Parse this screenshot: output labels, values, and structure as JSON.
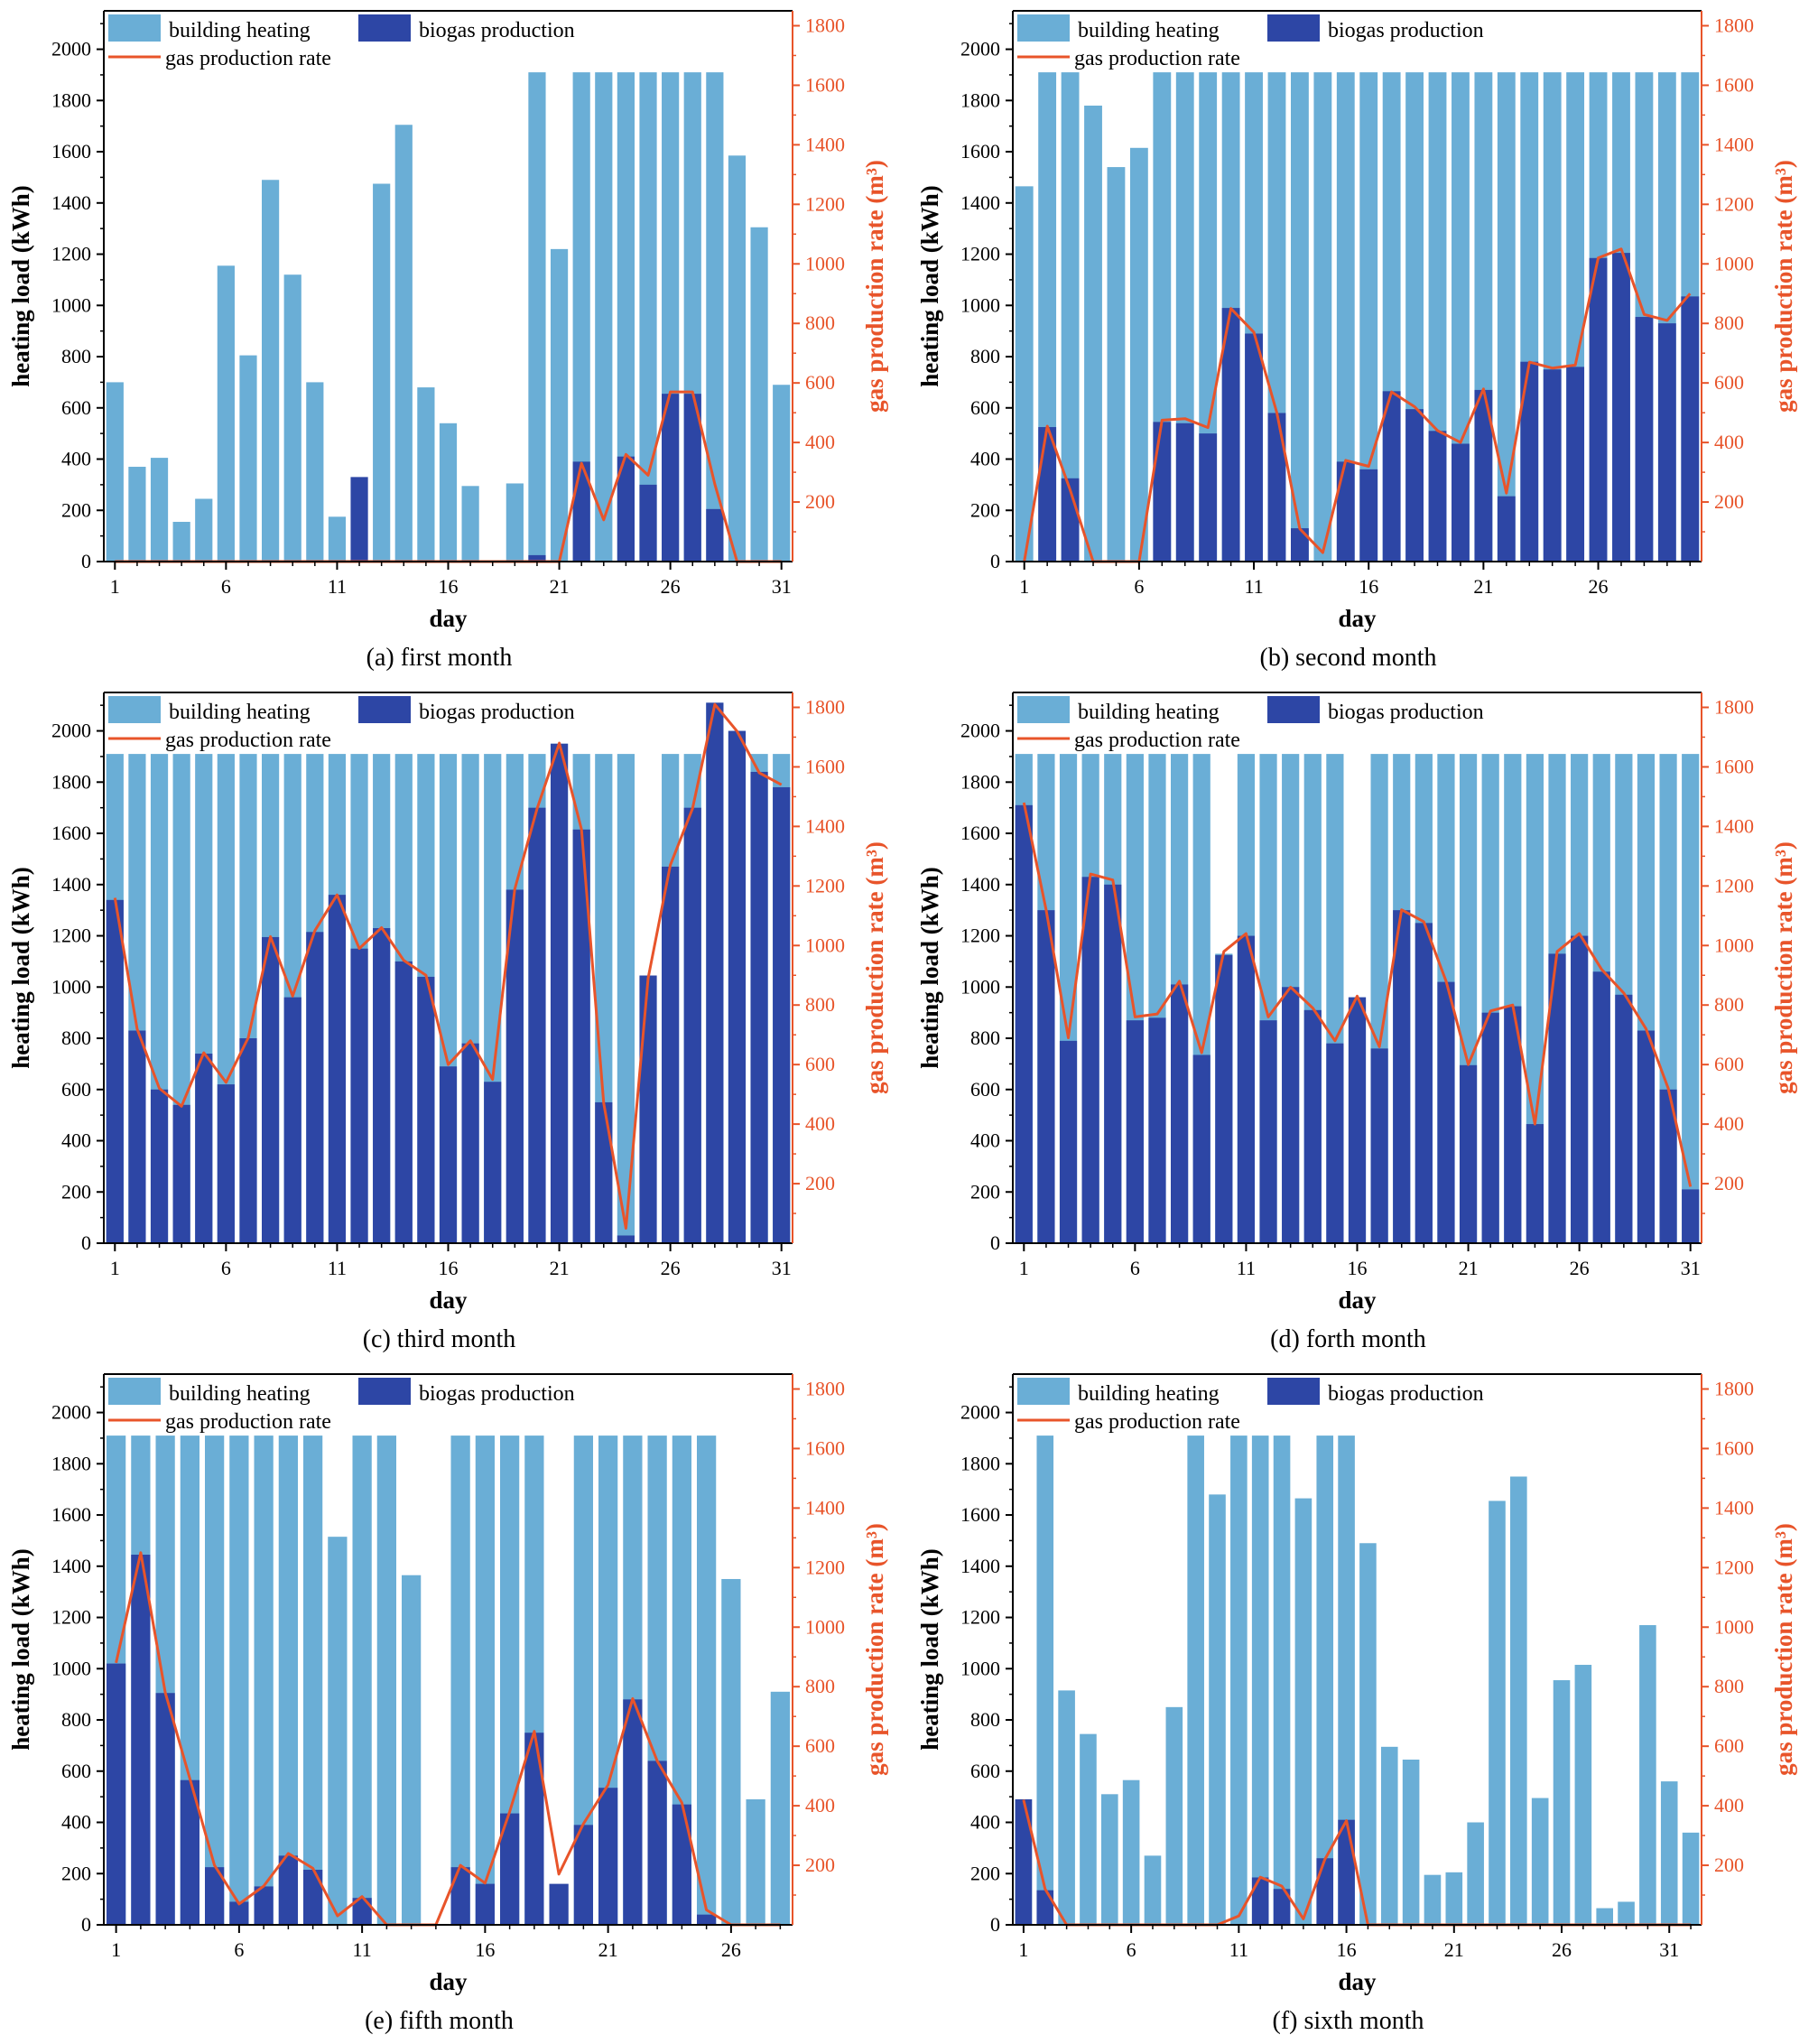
{
  "legend": {
    "heating": "building heating",
    "biogas": "biogas production",
    "rate": "gas production rate"
  },
  "colors": {
    "heating": "#6aaed6",
    "biogas": "#2d46a5",
    "rate": "#e8542a"
  },
  "chart_data": [
    {
      "type": "bar",
      "caption": "(a)  first month",
      "xlabel": "day",
      "ylabel": "heating load (kWh)",
      "y2label": "gas production rate (m³)",
      "ylim": [
        0,
        2150
      ],
      "y2lim": [
        0,
        1850
      ],
      "yticks": [
        0,
        200,
        400,
        600,
        800,
        1000,
        1200,
        1400,
        1600,
        1800,
        2000
      ],
      "y2ticks": [
        200,
        400,
        600,
        800,
        1000,
        1200,
        1400,
        1600,
        1800
      ],
      "xticks": [
        1,
        6,
        11,
        16,
        21,
        26,
        31
      ],
      "days": 31,
      "series": [
        {
          "name": "building heating",
          "values": [
            700,
            370,
            405,
            155,
            245,
            1155,
            805,
            1490,
            1120,
            700,
            175,
            0,
            1475,
            1705,
            680,
            540,
            295,
            0,
            305,
            1910,
            1220,
            1910,
            1910,
            1910,
            1910,
            1910,
            1910,
            1910,
            1585,
            1305,
            690
          ]
        },
        {
          "name": "biogas production",
          "values": [
            0,
            0,
            0,
            0,
            0,
            0,
            0,
            0,
            0,
            0,
            0,
            330,
            0,
            0,
            0,
            0,
            0,
            0,
            0,
            25,
            0,
            390,
            0,
            410,
            300,
            655,
            655,
            205,
            0,
            0,
            0
          ]
        },
        {
          "name": "gas production rate",
          "values": [
            0,
            0,
            0,
            0,
            0,
            0,
            0,
            0,
            0,
            0,
            0,
            0,
            0,
            0,
            0,
            0,
            0,
            0,
            0,
            0,
            0,
            330,
            140,
            360,
            290,
            570,
            570,
            260,
            0,
            0,
            0
          ]
        }
      ]
    },
    {
      "type": "bar",
      "caption": "(b)  second month",
      "xlabel": "day",
      "ylabel": "heating load (kWh)",
      "y2label": "gas production rate (m³)",
      "ylim": [
        0,
        2150
      ],
      "y2lim": [
        0,
        1850
      ],
      "yticks": [
        0,
        200,
        400,
        600,
        800,
        1000,
        1200,
        1400,
        1600,
        1800,
        2000
      ],
      "y2ticks": [
        200,
        400,
        600,
        800,
        1000,
        1200,
        1400,
        1600,
        1800
      ],
      "xticks": [
        1,
        6,
        11,
        16,
        21,
        26
      ],
      "days": 30,
      "series": [
        {
          "name": "building heating",
          "values": [
            1465,
            1910,
            1910,
            1780,
            1540,
            1615,
            1910,
            1910,
            1910,
            1910,
            1910,
            1910,
            1910,
            1910,
            1910,
            1910,
            1910,
            1910,
            1910,
            1910,
            1910,
            1910,
            1910,
            1910,
            1910,
            1910,
            1910,
            1910,
            1910,
            1910
          ]
        },
        {
          "name": "biogas production",
          "values": [
            0,
            525,
            325,
            0,
            0,
            0,
            545,
            540,
            500,
            990,
            890,
            580,
            130,
            0,
            390,
            360,
            665,
            595,
            510,
            460,
            670,
            255,
            780,
            750,
            760,
            1185,
            1205,
            955,
            930,
            1035
          ]
        },
        {
          "name": "gas production rate",
          "values": [
            0,
            455,
            240,
            0,
            0,
            0,
            475,
            480,
            450,
            850,
            770,
            500,
            110,
            30,
            340,
            320,
            570,
            520,
            440,
            400,
            580,
            230,
            670,
            650,
            660,
            1020,
            1050,
            830,
            810,
            900
          ]
        }
      ]
    },
    {
      "type": "bar",
      "caption": "(c)  third month",
      "xlabel": "day",
      "ylabel": "heating load (kWh)",
      "y2label": "gas production rate (m³)",
      "ylim": [
        0,
        2150
      ],
      "y2lim": [
        0,
        1850
      ],
      "yticks": [
        0,
        200,
        400,
        600,
        800,
        1000,
        1200,
        1400,
        1600,
        1800,
        2000
      ],
      "y2ticks": [
        200,
        400,
        600,
        800,
        1000,
        1200,
        1400,
        1600,
        1800
      ],
      "xticks": [
        1,
        6,
        11,
        16,
        21,
        26,
        31
      ],
      "days": 31,
      "series": [
        {
          "name": "building heating",
          "values": [
            1910,
            1910,
            1910,
            1910,
            1910,
            1910,
            1910,
            1910,
            1910,
            1910,
            1910,
            1910,
            1910,
            1910,
            1910,
            1910,
            1910,
            1910,
            1910,
            1910,
            1950,
            1910,
            1910,
            1910,
            0,
            1910,
            1910,
            2110,
            2000,
            1910,
            1910
          ]
        },
        {
          "name": "biogas production",
          "values": [
            1340,
            830,
            600,
            540,
            740,
            620,
            800,
            1195,
            960,
            1215,
            1360,
            1150,
            1230,
            1100,
            1040,
            690,
            780,
            630,
            1380,
            1700,
            1950,
            1615,
            550,
            30,
            1045,
            1470,
            1700,
            2110,
            2000,
            1840,
            1780
          ]
        },
        {
          "name": "gas production rate",
          "values": [
            1160,
            720,
            520,
            460,
            640,
            540,
            690,
            1030,
            830,
            1050,
            1170,
            990,
            1060,
            950,
            900,
            600,
            680,
            550,
            1190,
            1460,
            1680,
            1390,
            470,
            50,
            890,
            1270,
            1460,
            1810,
            1720,
            1580,
            1540
          ]
        }
      ]
    },
    {
      "type": "bar",
      "caption": "(d)  forth month",
      "xlabel": "day",
      "ylabel": "heating load (kWh)",
      "y2label": "gas production rate (m³)",
      "ylim": [
        0,
        2150
      ],
      "y2lim": [
        0,
        1850
      ],
      "yticks": [
        0,
        200,
        400,
        600,
        800,
        1000,
        1200,
        1400,
        1600,
        1800,
        2000
      ],
      "y2ticks": [
        200,
        400,
        600,
        800,
        1000,
        1200,
        1400,
        1600,
        1800
      ],
      "xticks": [
        1,
        6,
        11,
        16,
        21,
        26,
        31
      ],
      "days": 31,
      "series": [
        {
          "name": "building heating",
          "values": [
            1910,
            1910,
            1910,
            1910,
            1910,
            1910,
            1910,
            1910,
            1910,
            1130,
            1910,
            1910,
            1910,
            1910,
            1910,
            960,
            1910,
            1910,
            1910,
            1910,
            1910,
            1910,
            1910,
            1910,
            1910,
            1910,
            1910,
            1910,
            1910,
            1910,
            1910
          ]
        },
        {
          "name": "biogas production",
          "values": [
            1710,
            1300,
            790,
            1430,
            1400,
            870,
            880,
            1010,
            735,
            1125,
            1200,
            870,
            1000,
            910,
            780,
            960,
            760,
            1300,
            1250,
            1020,
            695,
            900,
            925,
            465,
            1130,
            1200,
            1060,
            970,
            830,
            600,
            210
          ]
        },
        {
          "name": "gas production rate",
          "values": [
            1480,
            1120,
            690,
            1240,
            1220,
            760,
            770,
            880,
            640,
            980,
            1040,
            760,
            860,
            790,
            680,
            830,
            660,
            1120,
            1080,
            880,
            600,
            780,
            800,
            400,
            980,
            1040,
            920,
            840,
            720,
            520,
            190
          ]
        }
      ]
    },
    {
      "type": "bar",
      "caption": "(e)  fifth month",
      "xlabel": "day",
      "ylabel": "heating load (kWh)",
      "y2label": "gas production rate (m³)",
      "ylim": [
        0,
        2150
      ],
      "y2lim": [
        0,
        1850
      ],
      "yticks": [
        0,
        200,
        400,
        600,
        800,
        1000,
        1200,
        1400,
        1600,
        1800,
        2000
      ],
      "y2ticks": [
        200,
        400,
        600,
        800,
        1000,
        1200,
        1400,
        1600,
        1800
      ],
      "xticks": [
        1,
        6,
        11,
        16,
        21,
        26
      ],
      "days": 28,
      "series": [
        {
          "name": "building heating",
          "values": [
            1910,
            1910,
            1910,
            1910,
            1910,
            1910,
            1910,
            1910,
            1910,
            1515,
            1910,
            1910,
            1365,
            0,
            1910,
            1910,
            1910,
            1910,
            0,
            1910,
            1910,
            1910,
            1910,
            1910,
            1910,
            1350,
            490,
            910
          ]
        },
        {
          "name": "biogas production",
          "values": [
            1020,
            1445,
            905,
            565,
            225,
            90,
            150,
            270,
            215,
            0,
            105,
            0,
            0,
            0,
            225,
            160,
            435,
            750,
            160,
            390,
            535,
            880,
            640,
            470,
            40,
            0,
            0,
            0
          ]
        },
        {
          "name": "gas production rate",
          "values": [
            880,
            1250,
            780,
            490,
            200,
            70,
            130,
            240,
            190,
            30,
            95,
            0,
            0,
            0,
            200,
            140,
            380,
            650,
            170,
            340,
            470,
            760,
            550,
            410,
            50,
            0,
            0,
            0
          ]
        }
      ]
    },
    {
      "type": "bar",
      "caption": "(f)  sixth month",
      "xlabel": "day",
      "ylabel": "heating load (kWh)",
      "y2label": "gas production rate (m³)",
      "ylim": [
        0,
        2150
      ],
      "y2lim": [
        0,
        1850
      ],
      "yticks": [
        0,
        200,
        400,
        600,
        800,
        1000,
        1200,
        1400,
        1600,
        1800,
        2000
      ],
      "y2ticks": [
        200,
        400,
        600,
        800,
        1000,
        1200,
        1400,
        1600,
        1800
      ],
      "xticks": [
        1,
        6,
        11,
        16,
        21,
        26,
        31
      ],
      "days": 32,
      "series": [
        {
          "name": "building heating",
          "values": [
            490,
            1910,
            915,
            745,
            510,
            565,
            270,
            850,
            1910,
            1680,
            1910,
            1910,
            1910,
            1665,
            1910,
            1910,
            1490,
            695,
            645,
            195,
            205,
            400,
            1655,
            1750,
            495,
            955,
            1015,
            65,
            90,
            1170,
            560,
            360
          ]
        },
        {
          "name": "biogas production",
          "values": [
            490,
            135,
            0,
            0,
            0,
            0,
            0,
            0,
            0,
            0,
            0,
            185,
            140,
            0,
            260,
            410,
            0,
            0,
            0,
            0,
            0,
            0,
            0,
            0,
            0,
            0,
            0,
            0,
            0,
            0,
            0,
            0
          ]
        },
        {
          "name": "gas production rate",
          "values": [
            420,
            120,
            0,
            0,
            0,
            0,
            0,
            0,
            0,
            0,
            30,
            160,
            130,
            20,
            220,
            350,
            0,
            0,
            0,
            0,
            0,
            0,
            0,
            0,
            0,
            0,
            0,
            0,
            0,
            0,
            0,
            0
          ]
        }
      ]
    }
  ]
}
